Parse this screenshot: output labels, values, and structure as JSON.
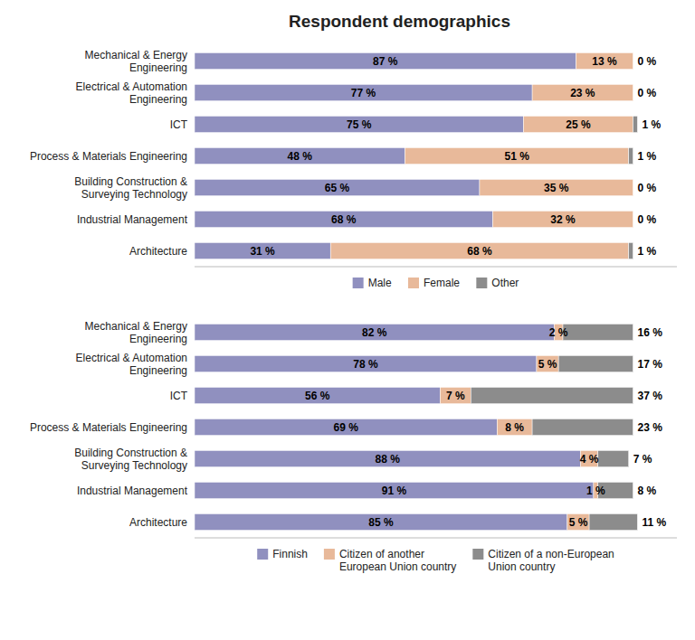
{
  "chart_data": [
    {
      "type": "bar",
      "title": "Respondent demographics",
      "orientation": "horizontal",
      "stacked": true,
      "categories": [
        "Mechanical & Energy\nEngineering",
        "Electrical & Automation\nEngineering",
        "ICT",
        "Process & Materials Engineering",
        "Building Construction &\nSurveying Technology",
        "Industrial Management",
        "Architecture"
      ],
      "series": [
        {
          "name": "Male",
          "color": "#9090bf",
          "values": [
            87,
            77,
            75,
            48,
            65,
            68,
            31
          ],
          "value_labels": [
            "87 %",
            "77 %",
            "75 %",
            "48 %",
            "65 %",
            "68 %",
            "31 %"
          ]
        },
        {
          "name": "Female",
          "color": "#e8b99a",
          "values": [
            13,
            23,
            25,
            51,
            35,
            32,
            68
          ],
          "value_labels": [
            "13 %",
            "23 %",
            "25 %",
            "51 %",
            "35 %",
            "32 %",
            "68 %"
          ]
        },
        {
          "name": "Other",
          "color": "#8c8c8c",
          "values": [
            0,
            0,
            1,
            1,
            0,
            0,
            1
          ],
          "value_labels": [
            "0 %",
            "0 %",
            "1 %",
            "1 %",
            "0 %",
            "0 %",
            "1 %"
          ]
        }
      ],
      "xlim": [
        0,
        110
      ],
      "data_labels": true,
      "tick_labels": "y",
      "legend": "bottom",
      "grid": false
    },
    {
      "type": "bar",
      "orientation": "horizontal",
      "stacked": true,
      "categories": [
        "Mechanical & Energy\nEngineering",
        "Electrical & Automation\nEngineering",
        "ICT",
        "Process & Materials Engineering",
        "Building Construction &\nSurveying Technology",
        "Industrial Management",
        "Architecture"
      ],
      "series": [
        {
          "name": "Finnish",
          "color": "#9090bf",
          "values": [
            82,
            78,
            56,
            69,
            88,
            91,
            85
          ],
          "value_labels": [
            "82 %",
            "78 %",
            "56 %",
            "69 %",
            "88 %",
            "91 %",
            "85 %"
          ]
        },
        {
          "name": "Citizen of another\nEuropean Union country",
          "color": "#e8b99a",
          "values": [
            2,
            5,
            7,
            8,
            4,
            1,
            5
          ],
          "value_labels": [
            "2 %",
            "5 %",
            "7 %",
            "8 %",
            "4 %",
            "1 %",
            "5 %"
          ]
        },
        {
          "name": "Citizen of a non-European\nUnion country",
          "color": "#8c8c8c",
          "values": [
            16,
            17,
            37,
            23,
            7,
            8,
            11
          ],
          "value_labels": [
            "16 %",
            "17 %",
            "37 %",
            "23 %",
            "7 %",
            "8 %",
            "11 %"
          ]
        }
      ],
      "xlim": [
        0,
        110
      ],
      "data_labels": true,
      "tick_labels": "y",
      "legend": "bottom",
      "grid": false
    }
  ]
}
